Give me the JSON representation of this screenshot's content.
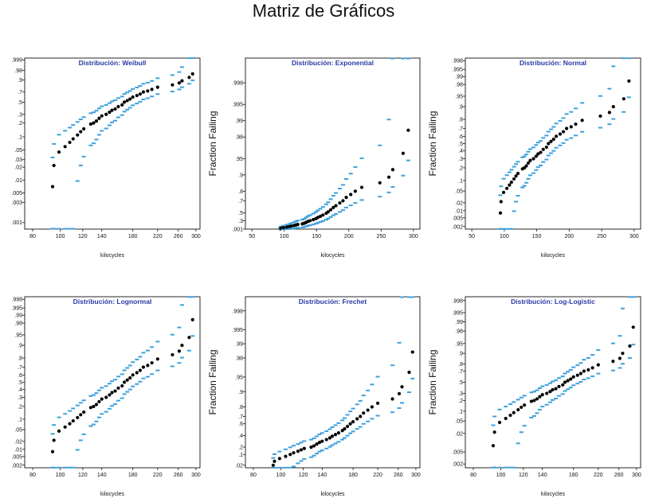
{
  "page": {
    "title": "Matriz de Gráficos"
  },
  "chart_data": [
    {
      "type": "scatter",
      "title": "Distribución: Weibull",
      "xlabel": "kilocycles",
      "ylabel": "",
      "x_scale": "log",
      "y_scale": "weibull-probability",
      "xlim": [
        75,
        310
      ],
      "ylim": [
        0.0007,
        0.9995
      ],
      "xticks": [
        80,
        100,
        120,
        140,
        180,
        220,
        260,
        300
      ],
      "yticks": [
        ".001",
        ".003",
        ".005",
        ".01",
        ".02",
        ".03",
        ".05",
        ".1",
        ".2",
        ".3",
        ".5",
        ".7",
        ".9",
        ".98",
        ".999"
      ],
      "series": [
        {
          "x": [
            94,
            95,
            99,
            104,
            108,
            111,
            115,
            118,
            121,
            128,
            131,
            134,
            137,
            140,
            145,
            149,
            152,
            156,
            160,
            165,
            168,
            172,
            176,
            180,
            186,
            191,
            196,
            203,
            210,
            220,
            248,
            262,
            268,
            284,
            292
          ],
          "y": [
            0.007,
            0.022,
            0.045,
            0.06,
            0.075,
            0.09,
            0.11,
            0.13,
            0.15,
            0.19,
            0.2,
            0.22,
            0.25,
            0.28,
            0.3,
            0.33,
            0.36,
            0.38,
            0.42,
            0.45,
            0.5,
            0.53,
            0.56,
            0.6,
            0.63,
            0.66,
            0.7,
            0.72,
            0.75,
            0.79,
            0.83,
            0.86,
            0.89,
            0.93,
            0.96
          ]
        }
      ]
    },
    {
      "type": "scatter",
      "title": "Distribución: Exponential",
      "xlabel": "kilocycles",
      "ylabel": "Fraction Failing",
      "x_scale": "linear",
      "y_scale": "exponential-probability",
      "xlim": [
        40,
        310
      ],
      "ylim": [
        0.0,
        0.9993
      ],
      "xticks": [
        50,
        100,
        150,
        200,
        250,
        300
      ],
      "yticks": [
        ".001",
        ".3",
        ".5",
        ".7",
        ".8",
        ".9",
        ".95",
        ".98",
        ".99",
        ".995",
        ".998"
      ],
      "series": [
        {
          "x": [
            94,
            95,
            99,
            104,
            108,
            111,
            115,
            118,
            121,
            128,
            131,
            134,
            137,
            140,
            145,
            149,
            152,
            156,
            160,
            165,
            168,
            172,
            176,
            180,
            186,
            191,
            196,
            203,
            210,
            220,
            248,
            262,
            268,
            284,
            292
          ],
          "y": [
            0.01,
            0.04,
            0.06,
            0.08,
            0.1,
            0.12,
            0.14,
            0.16,
            0.18,
            0.2,
            0.22,
            0.25,
            0.28,
            0.3,
            0.33,
            0.36,
            0.39,
            0.42,
            0.45,
            0.49,
            0.52,
            0.56,
            0.6,
            0.63,
            0.67,
            0.7,
            0.74,
            0.77,
            0.8,
            0.83,
            0.86,
            0.89,
            0.92,
            0.96,
            0.985
          ]
        }
      ]
    },
    {
      "type": "scatter",
      "title": "Distribución: Normal",
      "xlabel": "kilocycles",
      "ylabel": "Fraction Failing",
      "x_scale": "linear",
      "y_scale": "normal-probability",
      "xlim": [
        40,
        310
      ],
      "ylim": [
        0.0015,
        0.9985
      ],
      "xticks": [
        50,
        100,
        150,
        200,
        250,
        300
      ],
      "yticks": [
        ".002",
        ".005",
        ".01",
        ".02",
        ".05",
        ".1",
        ".2",
        ".3",
        ".4",
        ".5",
        ".6",
        ".7",
        ".8",
        ".9",
        ".95",
        ".98",
        ".99",
        ".995",
        ".998"
      ],
      "series": [
        {
          "x": [
            94,
            95,
            99,
            104,
            108,
            111,
            115,
            118,
            121,
            128,
            131,
            134,
            137,
            140,
            145,
            149,
            152,
            156,
            160,
            165,
            168,
            172,
            176,
            180,
            186,
            191,
            196,
            203,
            210,
            220,
            248,
            262,
            268,
            284,
            292
          ],
          "y": [
            0.008,
            0.022,
            0.045,
            0.06,
            0.075,
            0.09,
            0.11,
            0.13,
            0.15,
            0.19,
            0.2,
            0.22,
            0.25,
            0.28,
            0.3,
            0.33,
            0.36,
            0.38,
            0.42,
            0.45,
            0.5,
            0.53,
            0.56,
            0.6,
            0.63,
            0.66,
            0.7,
            0.72,
            0.75,
            0.79,
            0.83,
            0.86,
            0.9,
            0.94,
            0.985
          ]
        }
      ]
    },
    {
      "type": "scatter",
      "title": "Distribución: Lognormal",
      "xlabel": "kilocycles",
      "ylabel": "",
      "x_scale": "log",
      "y_scale": "normal-probability",
      "xlim": [
        75,
        310
      ],
      "ylim": [
        0.0015,
        0.9985
      ],
      "xticks": [
        80,
        100,
        120,
        140,
        180,
        220,
        260,
        300
      ],
      "yticks": [
        ".002",
        ".005",
        ".01",
        ".02",
        ".05",
        ".1",
        ".2",
        ".3",
        ".4",
        ".5",
        ".6",
        ".7",
        ".8",
        ".9",
        ".95",
        ".98",
        ".99",
        ".995",
        ".998"
      ],
      "series": [
        {
          "x": [
            94,
            95,
            99,
            104,
            108,
            111,
            115,
            118,
            121,
            128,
            131,
            134,
            137,
            140,
            145,
            149,
            152,
            156,
            160,
            165,
            168,
            172,
            176,
            180,
            186,
            191,
            196,
            203,
            210,
            220,
            248,
            262,
            268,
            284,
            292
          ],
          "y": [
            0.008,
            0.022,
            0.045,
            0.06,
            0.075,
            0.09,
            0.11,
            0.13,
            0.15,
            0.19,
            0.2,
            0.22,
            0.25,
            0.28,
            0.3,
            0.33,
            0.36,
            0.38,
            0.42,
            0.45,
            0.5,
            0.53,
            0.56,
            0.6,
            0.63,
            0.66,
            0.7,
            0.72,
            0.75,
            0.79,
            0.83,
            0.86,
            0.9,
            0.94,
            0.985
          ]
        }
      ]
    },
    {
      "type": "scatter",
      "title": "Distribución: Frechet",
      "xlabel": "kilocycles",
      "ylabel": "Fraction Failing",
      "x_scale": "log",
      "y_scale": "frechet-probability",
      "xlim": [
        75,
        310
      ],
      "ylim": [
        0.012,
        0.999
      ],
      "xticks": [
        80,
        100,
        120,
        140,
        180,
        220,
        260,
        300
      ],
      "yticks": [
        ".02",
        ".1",
        ".2",
        ".4",
        ".6",
        ".7",
        ".8",
        ".9",
        ".95",
        ".98",
        ".99",
        ".995",
        ".998"
      ],
      "series": [
        {
          "x": [
            94,
            95,
            99,
            104,
            108,
            111,
            115,
            118,
            121,
            128,
            131,
            134,
            137,
            140,
            145,
            149,
            152,
            156,
            160,
            165,
            168,
            172,
            176,
            180,
            186,
            191,
            196,
            203,
            210,
            220,
            248,
            262,
            268,
            284,
            292
          ],
          "y": [
            0.02,
            0.04,
            0.06,
            0.08,
            0.1,
            0.12,
            0.14,
            0.16,
            0.18,
            0.2,
            0.22,
            0.25,
            0.28,
            0.3,
            0.33,
            0.36,
            0.39,
            0.42,
            0.45,
            0.49,
            0.52,
            0.56,
            0.6,
            0.63,
            0.67,
            0.7,
            0.74,
            0.77,
            0.8,
            0.83,
            0.86,
            0.89,
            0.92,
            0.96,
            0.985
          ]
        }
      ]
    },
    {
      "type": "scatter",
      "title": "Distribución: Log-Logistic",
      "xlabel": "kilocycles",
      "ylabel": "Fraction Failing",
      "x_scale": "log",
      "y_scale": "logistic-probability",
      "xlim": [
        75,
        310
      ],
      "ylim": [
        0.0015,
        0.9985
      ],
      "xticks": [
        80,
        100,
        120,
        140,
        180,
        220,
        260,
        300
      ],
      "yticks": [
        ".002",
        ".005",
        ".02",
        ".05",
        ".1",
        ".2",
        ".3",
        ".5",
        ".7",
        ".8",
        ".9",
        ".95",
        ".98",
        ".99",
        ".995",
        ".998"
      ],
      "series": [
        {
          "x": [
            94,
            95,
            99,
            104,
            108,
            111,
            115,
            118,
            121,
            128,
            131,
            134,
            137,
            140,
            145,
            149,
            152,
            156,
            160,
            165,
            168,
            172,
            176,
            180,
            186,
            191,
            196,
            203,
            210,
            220,
            248,
            262,
            268,
            284,
            292
          ],
          "y": [
            0.008,
            0.022,
            0.045,
            0.06,
            0.075,
            0.09,
            0.11,
            0.13,
            0.15,
            0.19,
            0.2,
            0.22,
            0.25,
            0.28,
            0.3,
            0.33,
            0.36,
            0.38,
            0.42,
            0.45,
            0.5,
            0.53,
            0.56,
            0.6,
            0.63,
            0.66,
            0.7,
            0.72,
            0.75,
            0.79,
            0.83,
            0.86,
            0.9,
            0.94,
            0.985
          ]
        }
      ]
    }
  ]
}
